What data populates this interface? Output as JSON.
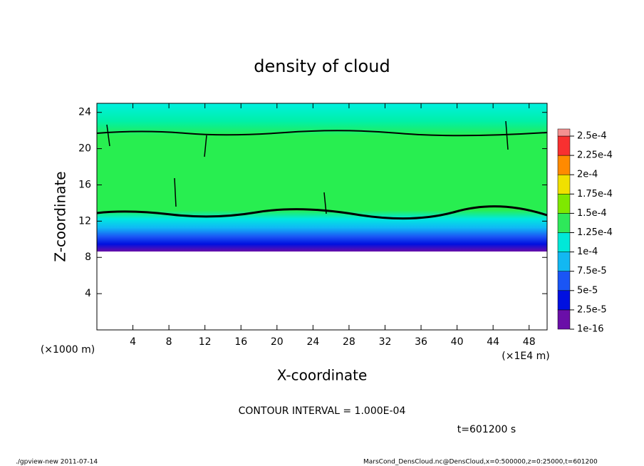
{
  "chart_data": {
    "type": "contour",
    "title": "density of cloud",
    "xlabel": "X-coordinate",
    "ylabel": "Z-coordinate",
    "x_unit": "(×1E4 m)",
    "y_unit": "(×1000 m)",
    "xlim": [
      0,
      50
    ],
    "ylim": [
      0,
      25
    ],
    "xticks": [
      4,
      8,
      12,
      16,
      20,
      24,
      28,
      32,
      36,
      40,
      44,
      48
    ],
    "yticks": [
      4,
      8,
      12,
      16,
      20,
      24
    ],
    "colorbar": {
      "ticks": [
        {
          "value": 1e-16,
          "label": "1e-16"
        },
        {
          "value": 2.5e-05,
          "label": "2.5e-5"
        },
        {
          "value": 5e-05,
          "label": "5e-5"
        },
        {
          "value": 7.5e-05,
          "label": "7.5e-5"
        },
        {
          "value": 0.0001,
          "label": "1e-4"
        },
        {
          "value": 0.000125,
          "label": "1.25e-4"
        },
        {
          "value": 0.00015,
          "label": "1.5e-4"
        },
        {
          "value": 0.000175,
          "label": "1.75e-4"
        },
        {
          "value": 0.0002,
          "label": "2e-4"
        },
        {
          "value": 0.000225,
          "label": "2.25e-4"
        },
        {
          "value": 0.00025,
          "label": "2.5e-4"
        }
      ],
      "colors": [
        "#6a0fa8",
        "#0010e0",
        "#1a55f5",
        "#12b8f2",
        "#00e8d8",
        "#2ee85a",
        "#7fe800",
        "#f0e000",
        "#ff8a00",
        "#f83030",
        "#f49090"
      ]
    },
    "contour_interval": "CONTOUR INTERVAL = 1.000E-04",
    "time_label": "t=601200 s",
    "footer_left": "./gpview-new  2011-07-14",
    "footer_right": "MarsCond_DensCloud.nc@DensCloud,x=0:500000,z=0:25000,t=601200"
  }
}
